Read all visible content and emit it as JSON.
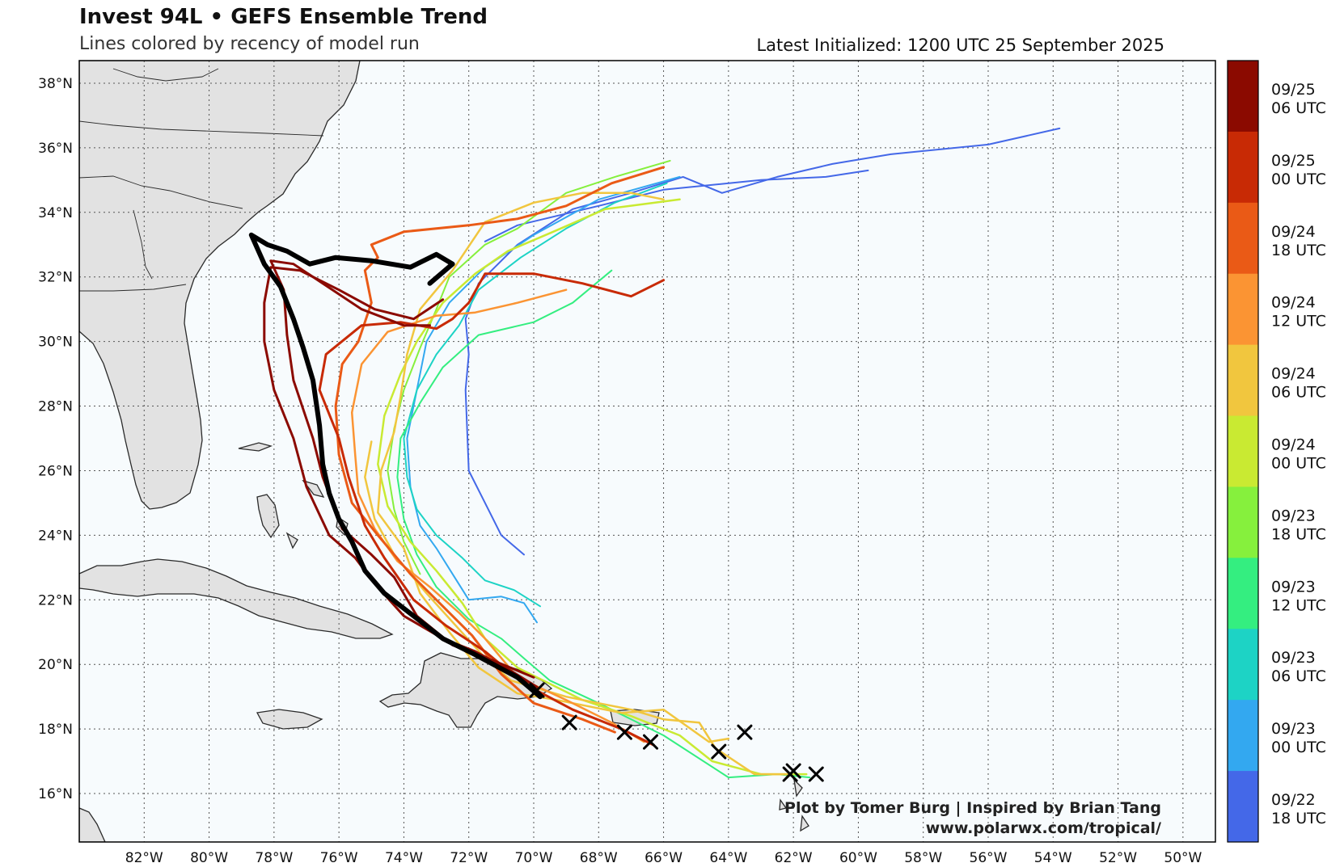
{
  "header": {
    "title": "Invest 94L • GEFS Ensemble Trend",
    "subtitle": "Lines colored by recency of model run",
    "latest_init": "Latest Initialized: 1200 UTC 25 September 2025"
  },
  "footer": {
    "credit_line1": "Plot by Tomer Burg | Inspired by Brian Tang",
    "credit_line2": "www.polarwx.com/tropical/"
  },
  "map": {
    "lon_range": [
      -84,
      -49
    ],
    "lat_range": [
      14.5,
      38.7
    ],
    "lon_ticks": [
      -82,
      -80,
      -78,
      -76,
      -74,
      -72,
      -70,
      -68,
      -66,
      -64,
      -62,
      -60,
      -58,
      -56,
      -54,
      -52,
      -50
    ],
    "lon_labels": [
      "82°W",
      "80°W",
      "78°W",
      "76°W",
      "74°W",
      "72°W",
      "70°W",
      "68°W",
      "66°W",
      "64°W",
      "62°W",
      "60°W",
      "58°W",
      "56°W",
      "54°W",
      "52°W",
      "50°W"
    ],
    "lat_ticks": [
      16,
      18,
      20,
      22,
      24,
      26,
      28,
      30,
      32,
      34,
      36,
      38
    ],
    "lat_labels": [
      "16°N",
      "18°N",
      "20°N",
      "22°N",
      "24°N",
      "26°N",
      "28°N",
      "30°N",
      "32°N",
      "34°N",
      "36°N",
      "38°N"
    ],
    "grid": true,
    "ocean_color": "#f7fbfd",
    "land_color": "#e2e2e2"
  },
  "colorbar": {
    "bins": [
      {
        "label1": "09/25",
        "label2": "06 UTC",
        "color": "#8b0a00"
      },
      {
        "label1": "09/25",
        "label2": "00 UTC",
        "color": "#c82a05"
      },
      {
        "label1": "09/24",
        "label2": "18 UTC",
        "color": "#ea5a16"
      },
      {
        "label1": "09/24",
        "label2": "12 UTC",
        "color": "#fb9433"
      },
      {
        "label1": "09/24",
        "label2": "06 UTC",
        "color": "#f1c63e"
      },
      {
        "label1": "09/24",
        "label2": "00 UTC",
        "color": "#c9ea32"
      },
      {
        "label1": "09/23",
        "label2": "18 UTC",
        "color": "#86f03d"
      },
      {
        "label1": "09/23",
        "label2": "12 UTC",
        "color": "#34ee80"
      },
      {
        "label1": "09/23",
        "label2": "06 UTC",
        "color": "#1dd3c5"
      },
      {
        "label1": "09/23",
        "label2": "00 UTC",
        "color": "#33a8f0"
      },
      {
        "label1": "09/22",
        "label2": "18 UTC",
        "color": "#4468e8"
      }
    ]
  },
  "tracks": [
    {
      "run": "09/22 18 UTC",
      "color": "#4468e8",
      "width": 2,
      "points": [
        [
          -70.3,
          23.4
        ],
        [
          -71.0,
          24.0
        ],
        [
          -71.6,
          25.2
        ],
        [
          -72.0,
          26.0
        ],
        [
          -72.1,
          28.5
        ],
        [
          -72.0,
          29.6
        ],
        [
          -72.1,
          30.7
        ],
        [
          -71.7,
          31.8
        ],
        [
          -70.5,
          33.0
        ],
        [
          -68.8,
          34.1
        ],
        [
          -67.0,
          34.6
        ],
        [
          -65.4,
          35.1
        ],
        [
          -64.2,
          34.6
        ],
        [
          -62.5,
          35.1
        ],
        [
          -60.8,
          35.5
        ],
        [
          -59.0,
          35.8
        ],
        [
          -56.0,
          36.1
        ],
        [
          -53.8,
          36.6
        ]
      ]
    },
    {
      "run": "09/22 18 UTC",
      "color": "#4468e8",
      "width": 2,
      "points": [
        [
          -71.5,
          33.1
        ],
        [
          -70.5,
          33.6
        ],
        [
          -68.0,
          34.2
        ],
        [
          -66.0,
          34.7
        ],
        [
          -63.0,
          35.0
        ],
        [
          -61.0,
          35.1
        ],
        [
          -59.7,
          35.3
        ]
      ]
    },
    {
      "run": "09/23 00 UTC",
      "color": "#33a8f0",
      "width": 2,
      "points": [
        [
          -69.9,
          21.3
        ],
        [
          -70.3,
          21.9
        ],
        [
          -71.0,
          22.1
        ],
        [
          -72.0,
          22.0
        ],
        [
          -72.5,
          22.8
        ],
        [
          -73.0,
          23.6
        ],
        [
          -73.5,
          24.3
        ],
        [
          -73.8,
          25.5
        ],
        [
          -73.9,
          27.0
        ],
        [
          -73.6,
          28.5
        ],
        [
          -73.3,
          30.0
        ],
        [
          -72.6,
          31.2
        ],
        [
          -71.5,
          32.3
        ],
        [
          -70.0,
          33.3
        ],
        [
          -68.0,
          34.4
        ],
        [
          -65.5,
          35.1
        ]
      ]
    },
    {
      "run": "09/23 06 UTC",
      "color": "#1dd3c5",
      "width": 2,
      "points": [
        [
          -69.8,
          21.8
        ],
        [
          -70.6,
          22.3
        ],
        [
          -71.5,
          22.6
        ],
        [
          -72.2,
          23.3
        ],
        [
          -73.0,
          24.0
        ],
        [
          -73.6,
          24.8
        ],
        [
          -73.9,
          25.8
        ],
        [
          -74.0,
          27.0
        ],
        [
          -73.6,
          28.5
        ],
        [
          -73.0,
          29.6
        ],
        [
          -72.3,
          30.5
        ],
        [
          -71.7,
          31.6
        ],
        [
          -70.4,
          32.6
        ],
        [
          -69.0,
          33.5
        ],
        [
          -67.5,
          34.3
        ],
        [
          -65.9,
          34.9
        ]
      ]
    },
    {
      "run": "09/23 12 UTC",
      "color": "#34ee80",
      "width": 2,
      "points": [
        [
          -61.5,
          16.5
        ],
        [
          -62.5,
          16.6
        ],
        [
          -64.0,
          16.5
        ],
        [
          -66.0,
          17.8
        ],
        [
          -68.0,
          18.8
        ],
        [
          -69.5,
          19.5
        ],
        [
          -70.2,
          20.1
        ],
        [
          -71.0,
          20.8
        ],
        [
          -72.0,
          21.4
        ],
        [
          -73.0,
          22.4
        ],
        [
          -73.6,
          23.4
        ],
        [
          -74.0,
          24.5
        ],
        [
          -74.2,
          25.8
        ],
        [
          -74.1,
          27.0
        ],
        [
          -73.5,
          28.1
        ],
        [
          -72.8,
          29.2
        ],
        [
          -71.7,
          30.2
        ],
        [
          -70.0,
          30.6
        ],
        [
          -68.8,
          31.2
        ],
        [
          -67.6,
          32.2
        ]
      ]
    },
    {
      "run": "09/23 18 UTC",
      "color": "#86f03d",
      "width": 2,
      "points": [
        [
          -73.5,
          22.8
        ],
        [
          -74.0,
          23.8
        ],
        [
          -74.3,
          24.8
        ],
        [
          -74.5,
          26.0
        ],
        [
          -74.3,
          27.3
        ],
        [
          -74.0,
          28.5
        ],
        [
          -73.5,
          29.8
        ],
        [
          -73.0,
          31.0
        ],
        [
          -72.6,
          32.0
        ],
        [
          -71.5,
          33.0
        ],
        [
          -70.5,
          33.5
        ],
        [
          -69.0,
          34.6
        ],
        [
          -67.5,
          35.1
        ],
        [
          -65.8,
          35.6
        ]
      ]
    },
    {
      "run": "09/24 00 UTC",
      "color": "#c9ea32",
      "width": 2.5,
      "points": [
        [
          -61.6,
          16.6
        ],
        [
          -63.0,
          16.6
        ],
        [
          -64.5,
          17.0
        ],
        [
          -65.5,
          17.8
        ],
        [
          -67.0,
          18.4
        ],
        [
          -68.5,
          18.9
        ],
        [
          -70.5,
          19.9
        ],
        [
          -71.5,
          20.8
        ],
        [
          -72.2,
          21.9
        ],
        [
          -73.0,
          22.9
        ],
        [
          -73.8,
          23.8
        ],
        [
          -74.5,
          24.9
        ],
        [
          -74.8,
          26.2
        ],
        [
          -74.6,
          27.7
        ],
        [
          -74.1,
          29.0
        ],
        [
          -73.6,
          30.0
        ],
        [
          -72.8,
          31.2
        ],
        [
          -71.8,
          32.1
        ],
        [
          -70.8,
          32.8
        ],
        [
          -69.4,
          33.4
        ],
        [
          -67.8,
          34.1
        ],
        [
          -65.5,
          34.4
        ]
      ]
    },
    {
      "run": "09/24 06 UTC",
      "color": "#f1c63e",
      "width": 2.5,
      "points": [
        [
          -62.2,
          16.6
        ],
        [
          -63.2,
          16.6
        ],
        [
          -64.4,
          17.4
        ],
        [
          -64.9,
          18.2
        ],
        [
          -66.0,
          18.3
        ],
        [
          -67.0,
          18.6
        ],
        [
          -69.0,
          19.0
        ],
        [
          -70.7,
          19.5
        ],
        [
          -71.5,
          20.2
        ],
        [
          -72.4,
          21.2
        ],
        [
          -73.3,
          22.2
        ],
        [
          -74.3,
          23.4
        ],
        [
          -74.9,
          24.5
        ],
        [
          -75.2,
          25.8
        ],
        [
          -75.0,
          26.9
        ]
      ]
    },
    {
      "run": "09/24 06 UTC",
      "color": "#f1c63e",
      "width": 2.5,
      "points": [
        [
          -64.0,
          17.7
        ],
        [
          -64.6,
          17.6
        ],
        [
          -66.0,
          18.6
        ],
        [
          -67.3,
          18.5
        ],
        [
          -69.3,
          18.9
        ],
        [
          -70.5,
          19.1
        ],
        [
          -71.7,
          19.9
        ],
        [
          -72.6,
          21.0
        ],
        [
          -73.5,
          22.2
        ],
        [
          -74.0,
          23.6
        ],
        [
          -74.8,
          24.7
        ],
        [
          -74.7,
          26.0
        ],
        [
          -74.3,
          27.2
        ],
        [
          -74.1,
          28.3
        ],
        [
          -73.9,
          29.6
        ],
        [
          -73.5,
          31.0
        ],
        [
          -72.5,
          32.2
        ],
        [
          -71.5,
          33.7
        ],
        [
          -70.0,
          34.3
        ],
        [
          -68.5,
          34.6
        ],
        [
          -67.0,
          34.6
        ],
        [
          -66.0,
          34.4
        ]
      ]
    },
    {
      "run": "09/24 12 UTC",
      "color": "#fb9433",
      "width": 2.5,
      "points": [
        [
          -66.6,
          17.6
        ],
        [
          -67.6,
          18.2
        ],
        [
          -69.0,
          18.9
        ],
        [
          -70.5,
          19.6
        ],
        [
          -71.5,
          20.8
        ],
        [
          -72.3,
          21.6
        ],
        [
          -73.2,
          22.4
        ],
        [
          -74.2,
          23.2
        ],
        [
          -74.9,
          24.2
        ],
        [
          -75.4,
          25.3
        ],
        [
          -75.5,
          26.5
        ],
        [
          -75.6,
          27.8
        ],
        [
          -75.3,
          29.3
        ],
        [
          -74.5,
          30.3
        ],
        [
          -73.0,
          30.8
        ],
        [
          -71.8,
          30.9
        ],
        [
          -70.5,
          31.2
        ],
        [
          -69.0,
          31.6
        ]
      ]
    },
    {
      "run": "09/24 18 UTC",
      "color": "#ea5a16",
      "width": 3,
      "points": [
        [
          -67.5,
          17.9
        ],
        [
          -68.5,
          18.3
        ],
        [
          -70.0,
          18.8
        ],
        [
          -71.0,
          19.7
        ],
        [
          -71.9,
          20.9
        ],
        [
          -72.8,
          21.8
        ],
        [
          -73.8,
          22.8
        ],
        [
          -74.8,
          24.0
        ],
        [
          -75.6,
          25.0
        ],
        [
          -76.0,
          26.5
        ],
        [
          -76.1,
          28.0
        ],
        [
          -75.9,
          29.3
        ],
        [
          -75.4,
          30.0
        ],
        [
          -75.0,
          31.2
        ],
        [
          -75.2,
          32.2
        ],
        [
          -74.8,
          32.6
        ],
        [
          -75.0,
          33.0
        ],
        [
          -74.0,
          33.4
        ],
        [
          -72.0,
          33.6
        ],
        [
          -70.5,
          33.8
        ],
        [
          -69.0,
          34.2
        ],
        [
          -67.6,
          34.9
        ],
        [
          -66.0,
          35.4
        ]
      ]
    },
    {
      "run": "09/25 00 UTC",
      "color": "#c82a05",
      "width": 3,
      "points": [
        [
          -66.3,
          17.5
        ],
        [
          -67.3,
          18.0
        ],
        [
          -68.8,
          18.6
        ],
        [
          -70.3,
          19.4
        ],
        [
          -71.5,
          20.4
        ],
        [
          -72.7,
          21.2
        ],
        [
          -73.7,
          22.0
        ],
        [
          -74.6,
          23.3
        ],
        [
          -75.2,
          24.3
        ],
        [
          -75.7,
          25.8
        ],
        [
          -76.0,
          27.0
        ],
        [
          -76.6,
          28.5
        ],
        [
          -76.4,
          29.6
        ],
        [
          -75.3,
          30.5
        ],
        [
          -74.1,
          30.6
        ],
        [
          -73.0,
          30.4
        ],
        [
          -72.5,
          30.7
        ],
        [
          -72.0,
          31.2
        ],
        [
          -71.5,
          32.1
        ],
        [
          -70.0,
          32.1
        ],
        [
          -68.5,
          31.8
        ],
        [
          -67.0,
          31.4
        ],
        [
          -66.0,
          31.9
        ]
      ]
    },
    {
      "run": "09/25 06 UTC",
      "color": "#8b0a00",
      "width": 3,
      "points": [
        [
          -69.9,
          19.3
        ],
        [
          -70.7,
          19.8
        ],
        [
          -71.8,
          20.4
        ],
        [
          -72.8,
          20.8
        ],
        [
          -74.0,
          21.5
        ],
        [
          -74.9,
          22.5
        ],
        [
          -75.5,
          23.3
        ],
        [
          -76.3,
          24.0
        ],
        [
          -77.0,
          25.5
        ],
        [
          -77.4,
          27.0
        ],
        [
          -78.0,
          28.5
        ],
        [
          -78.3,
          30.0
        ],
        [
          -78.3,
          31.2
        ],
        [
          -78.1,
          32.3
        ],
        [
          -77.2,
          32.2
        ],
        [
          -76.0,
          31.6
        ],
        [
          -74.9,
          31.0
        ],
        [
          -73.7,
          30.7
        ],
        [
          -72.8,
          31.3
        ]
      ]
    },
    {
      "run": "09/25 06 UTC",
      "color": "#8b0a00",
      "width": 3,
      "points": [
        [
          -70.0,
          19.6
        ],
        [
          -71.2,
          20.1
        ],
        [
          -72.5,
          20.6
        ],
        [
          -73.6,
          21.5
        ],
        [
          -74.3,
          22.7
        ],
        [
          -75.0,
          23.4
        ],
        [
          -75.9,
          24.2
        ],
        [
          -76.5,
          25.8
        ],
        [
          -76.8,
          27.0
        ],
        [
          -77.4,
          28.8
        ],
        [
          -77.6,
          30.2
        ],
        [
          -77.7,
          31.6
        ],
        [
          -78.1,
          32.5
        ],
        [
          -77.4,
          32.4
        ],
        [
          -76.5,
          31.8
        ],
        [
          -75.3,
          31.0
        ],
        [
          -74.0,
          30.5
        ],
        [
          -73.2,
          30.5
        ]
      ]
    },
    {
      "run": "ensemble mean",
      "color": "#000000",
      "width": 6,
      "points": [
        [
          -69.8,
          19.0
        ],
        [
          -70.5,
          19.6
        ],
        [
          -71.8,
          20.3
        ],
        [
          -72.8,
          20.8
        ],
        [
          -73.7,
          21.5
        ],
        [
          -74.6,
          22.2
        ],
        [
          -75.2,
          22.9
        ],
        [
          -75.6,
          23.8
        ],
        [
          -76.0,
          24.5
        ],
        [
          -76.3,
          25.3
        ],
        [
          -76.5,
          26.2
        ],
        [
          -76.6,
          27.4
        ],
        [
          -76.8,
          28.8
        ],
        [
          -77.1,
          29.8
        ],
        [
          -77.4,
          30.7
        ],
        [
          -77.8,
          31.7
        ],
        [
          -78.3,
          32.4
        ],
        [
          -78.7,
          33.3
        ],
        [
          -78.2,
          33.0
        ],
        [
          -77.6,
          32.8
        ],
        [
          -76.9,
          32.4
        ],
        [
          -76.1,
          32.6
        ],
        [
          -75.0,
          32.5
        ],
        [
          -73.8,
          32.3
        ],
        [
          -73.0,
          32.7
        ],
        [
          -72.5,
          32.4
        ],
        [
          -73.2,
          31.8
        ]
      ]
    }
  ],
  "markers": [
    {
      "lon": -69.9,
      "lat": 19.2
    },
    {
      "lon": -68.9,
      "lat": 18.2
    },
    {
      "lon": -67.2,
      "lat": 17.9
    },
    {
      "lon": -66.4,
      "lat": 17.6
    },
    {
      "lon": -64.3,
      "lat": 17.3
    },
    {
      "lon": -63.5,
      "lat": 17.9
    },
    {
      "lon": -62.0,
      "lat": 16.7
    },
    {
      "lon": -62.1,
      "lat": 16.6
    },
    {
      "lon": -61.3,
      "lat": 16.6
    }
  ]
}
